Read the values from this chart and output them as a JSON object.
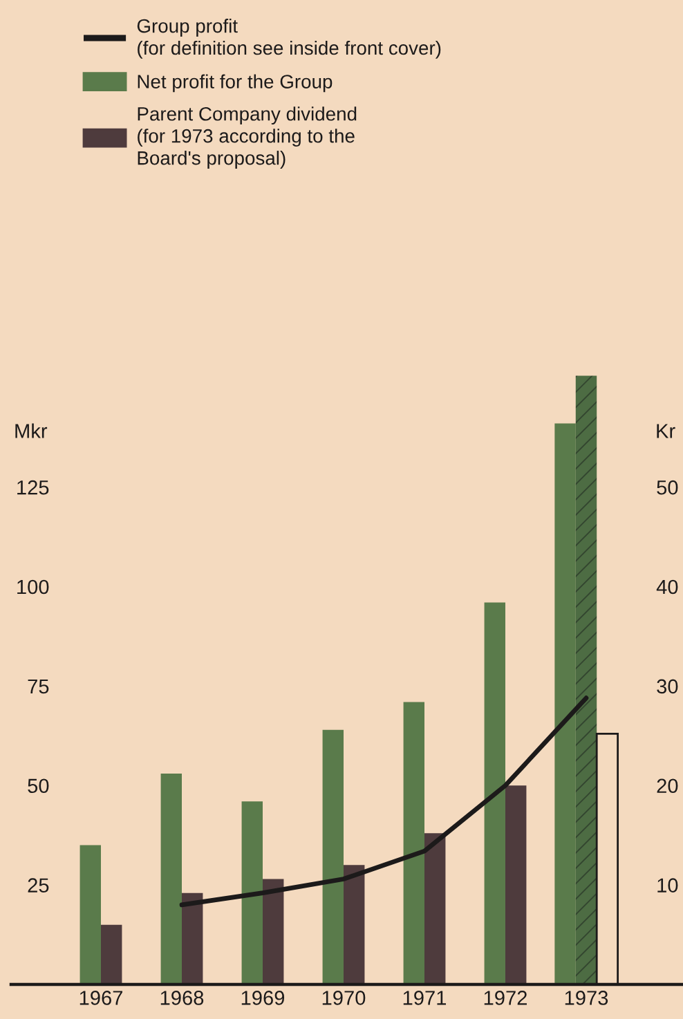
{
  "chart_data": {
    "type": "bar",
    "categories": [
      "1967",
      "1968",
      "1969",
      "1970",
      "1971",
      "1972",
      "1973"
    ],
    "ylabel": "Mkr",
    "y2label": "Kr",
    "ylim": [
      0,
      155
    ],
    "yticks": [
      25,
      50,
      75,
      100,
      125
    ],
    "y2lim": [
      0,
      62
    ],
    "y2ticks": [
      10,
      20,
      30,
      40,
      50
    ],
    "legend": "top left",
    "series": [
      {
        "name": "Group profit\n(for definition see inside front cover)",
        "type": "line",
        "color": "#1c1a1a",
        "values": [
          null,
          20,
          23,
          26.5,
          33.5,
          50,
          72
        ]
      },
      {
        "name": "Net profit for the Group",
        "color": "#5a7b4b",
        "values": [
          35,
          53,
          46,
          64,
          71,
          96,
          141
        ]
      },
      {
        "color": "#4d6c43",
        "values": [
          null,
          null,
          null,
          null,
          null,
          null,
          153
        ]
      },
      {
        "name": "Parent Company dividend\n(for 1973 according to the\nBoard's proposal)",
        "color": "#4e3b3d",
        "colors": [
          "#4e3b3d",
          "#4e3b3d",
          "#4e3b3d",
          "#4e3b3d",
          "#4e3b3d",
          "#4e3b3d",
          "#f4dabf"
        ],
        "values": [
          15,
          23,
          26.5,
          30,
          38,
          50,
          63
        ]
      }
    ]
  }
}
